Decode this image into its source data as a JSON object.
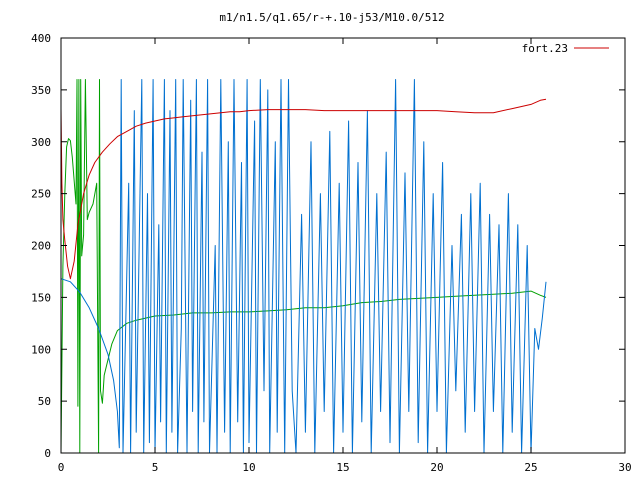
{
  "chart_data": {
    "type": "line",
    "title": "m1/n1.5/q1.65/r-+.10-j53/M10.0/512",
    "xlabel": "",
    "ylabel": "",
    "xlim": [
      0,
      30
    ],
    "ylim": [
      0,
      400
    ],
    "xticks": [
      0,
      5,
      10,
      15,
      20,
      25,
      30
    ],
    "yticks": [
      0,
      50,
      100,
      150,
      200,
      250,
      300,
      350,
      400
    ],
    "grid": false,
    "legend_position": "top-right",
    "series": [
      {
        "name": "fort.23",
        "color": "#cc0000",
        "points": [
          [
            0,
            332
          ],
          [
            0.05,
            260
          ],
          [
            0.1,
            225
          ],
          [
            0.2,
            205
          ],
          [
            0.35,
            180
          ],
          [
            0.5,
            168
          ],
          [
            0.7,
            185
          ],
          [
            0.9,
            220
          ],
          [
            1.2,
            250
          ],
          [
            1.5,
            268
          ],
          [
            1.8,
            280
          ],
          [
            2.2,
            290
          ],
          [
            2.6,
            298
          ],
          [
            3.0,
            305
          ],
          [
            3.5,
            310
          ],
          [
            4.0,
            315
          ],
          [
            4.5,
            318
          ],
          [
            5.0,
            320
          ],
          [
            5.5,
            322
          ],
          [
            6.0,
            323
          ],
          [
            6.5,
            324
          ],
          [
            7.0,
            325
          ],
          [
            7.5,
            326
          ],
          [
            8.0,
            327
          ],
          [
            8.5,
            328
          ],
          [
            9.0,
            329
          ],
          [
            9.5,
            329
          ],
          [
            10.0,
            330
          ],
          [
            11.0,
            331
          ],
          [
            12.0,
            331
          ],
          [
            13.0,
            331
          ],
          [
            14.0,
            330
          ],
          [
            15.0,
            330
          ],
          [
            16.0,
            330
          ],
          [
            17.0,
            330
          ],
          [
            18.0,
            330
          ],
          [
            19.0,
            330
          ],
          [
            20.0,
            330
          ],
          [
            21.0,
            329
          ],
          [
            22.0,
            328
          ],
          [
            23.0,
            328
          ],
          [
            24.0,
            332
          ],
          [
            25.0,
            336
          ],
          [
            25.5,
            340
          ],
          [
            25.8,
            341
          ]
        ]
      },
      {
        "name": "",
        "color": "#00a000",
        "points": [
          [
            0,
            0
          ],
          [
            0.1,
            180
          ],
          [
            0.2,
            250
          ],
          [
            0.3,
            295
          ],
          [
            0.4,
            303
          ],
          [
            0.5,
            301
          ],
          [
            0.6,
            285
          ],
          [
            0.7,
            262
          ],
          [
            0.8,
            240
          ],
          [
            0.85,
            360
          ],
          [
            0.9,
            45
          ],
          [
            0.95,
            360
          ],
          [
            1.0,
            0
          ],
          [
            1.05,
            360
          ],
          [
            1.1,
            190
          ],
          [
            1.2,
            210
          ],
          [
            1.3,
            360
          ],
          [
            1.4,
            225
          ],
          [
            1.5,
            232
          ],
          [
            1.7,
            240
          ],
          [
            1.9,
            260
          ],
          [
            2.0,
            0
          ],
          [
            2.05,
            360
          ],
          [
            2.1,
            60
          ],
          [
            2.2,
            48
          ],
          [
            2.3,
            75
          ],
          [
            2.5,
            90
          ],
          [
            2.7,
            105
          ],
          [
            3.0,
            118
          ],
          [
            3.5,
            125
          ],
          [
            4.0,
            128
          ],
          [
            4.5,
            130
          ],
          [
            5.0,
            132
          ],
          [
            6.0,
            133
          ],
          [
            7.0,
            135
          ],
          [
            8.0,
            135
          ],
          [
            9.0,
            136
          ],
          [
            10.0,
            136
          ],
          [
            11.0,
            137
          ],
          [
            12.0,
            138
          ],
          [
            13.0,
            140
          ],
          [
            14.0,
            140
          ],
          [
            15.0,
            142
          ],
          [
            16.0,
            145
          ],
          [
            17.0,
            146
          ],
          [
            18.0,
            148
          ],
          [
            19.0,
            149
          ],
          [
            20.0,
            150
          ],
          [
            21.0,
            151
          ],
          [
            22.0,
            152
          ],
          [
            23.0,
            153
          ],
          [
            24.0,
            154
          ],
          [
            25.0,
            156
          ],
          [
            25.5,
            152
          ],
          [
            25.8,
            150
          ]
        ]
      },
      {
        "name": "",
        "color": "#0070d0",
        "points": [
          [
            0,
            168
          ],
          [
            0.5,
            165
          ],
          [
            1.0,
            155
          ],
          [
            1.5,
            140
          ],
          [
            2.0,
            120
          ],
          [
            2.5,
            95
          ],
          [
            2.8,
            70
          ],
          [
            3.0,
            40
          ],
          [
            3.1,
            5
          ],
          [
            3.2,
            360
          ],
          [
            3.3,
            0
          ],
          [
            3.6,
            260
          ],
          [
            3.7,
            0
          ],
          [
            3.9,
            330
          ],
          [
            4.0,
            20
          ],
          [
            4.3,
            360
          ],
          [
            4.4,
            0
          ],
          [
            4.6,
            250
          ],
          [
            4.7,
            10
          ],
          [
            4.9,
            360
          ],
          [
            5.0,
            0
          ],
          [
            5.2,
            220
          ],
          [
            5.3,
            30
          ],
          [
            5.5,
            360
          ],
          [
            5.6,
            0
          ],
          [
            5.8,
            330
          ],
          [
            5.9,
            20
          ],
          [
            6.1,
            360
          ],
          [
            6.2,
            0
          ],
          [
            6.4,
            120
          ],
          [
            6.5,
            360
          ],
          [
            6.7,
            0
          ],
          [
            6.9,
            340
          ],
          [
            7.0,
            40
          ],
          [
            7.2,
            360
          ],
          [
            7.3,
            0
          ],
          [
            7.5,
            290
          ],
          [
            7.6,
            30
          ],
          [
            7.8,
            360
          ],
          [
            7.9,
            0
          ],
          [
            8.2,
            200
          ],
          [
            8.3,
            0
          ],
          [
            8.5,
            360
          ],
          [
            8.7,
            20
          ],
          [
            8.9,
            300
          ],
          [
            9.0,
            0
          ],
          [
            9.2,
            360
          ],
          [
            9.4,
            30
          ],
          [
            9.6,
            280
          ],
          [
            9.7,
            0
          ],
          [
            9.9,
            360
          ],
          [
            10.0,
            10
          ],
          [
            10.3,
            320
          ],
          [
            10.4,
            0
          ],
          [
            10.6,
            360
          ],
          [
            10.8,
            60
          ],
          [
            11.0,
            350
          ],
          [
            11.1,
            0
          ],
          [
            11.4,
            300
          ],
          [
            11.5,
            20
          ],
          [
            11.7,
            360
          ],
          [
            11.9,
            0
          ],
          [
            12.1,
            360
          ],
          [
            12.3,
            60
          ],
          [
            12.5,
            0
          ],
          [
            12.8,
            230
          ],
          [
            13.0,
            20
          ],
          [
            13.3,
            300
          ],
          [
            13.5,
            0
          ],
          [
            13.8,
            250
          ],
          [
            14.0,
            40
          ],
          [
            14.3,
            310
          ],
          [
            14.5,
            0
          ],
          [
            14.8,
            260
          ],
          [
            15.0,
            20
          ],
          [
            15.3,
            320
          ],
          [
            15.5,
            0
          ],
          [
            15.8,
            280
          ],
          [
            16.0,
            30
          ],
          [
            16.3,
            330
          ],
          [
            16.5,
            0
          ],
          [
            16.8,
            250
          ],
          [
            17.0,
            40
          ],
          [
            17.3,
            290
          ],
          [
            17.5,
            10
          ],
          [
            17.8,
            360
          ],
          [
            18.0,
            0
          ],
          [
            18.3,
            270
          ],
          [
            18.5,
            40
          ],
          [
            18.8,
            360
          ],
          [
            19.0,
            10
          ],
          [
            19.3,
            300
          ],
          [
            19.5,
            0
          ],
          [
            19.8,
            250
          ],
          [
            20.0,
            40
          ],
          [
            20.3,
            280
          ],
          [
            20.5,
            0
          ],
          [
            20.8,
            200
          ],
          [
            21.0,
            60
          ],
          [
            21.3,
            230
          ],
          [
            21.5,
            20
          ],
          [
            21.8,
            250
          ],
          [
            22.0,
            40
          ],
          [
            22.3,
            260
          ],
          [
            22.5,
            0
          ],
          [
            22.8,
            230
          ],
          [
            23.0,
            40
          ],
          [
            23.3,
            220
          ],
          [
            23.5,
            0
          ],
          [
            23.8,
            250
          ],
          [
            24.0,
            20
          ],
          [
            24.3,
            220
          ],
          [
            24.5,
            0
          ],
          [
            24.8,
            200
          ],
          [
            25.0,
            0
          ],
          [
            25.2,
            120
          ],
          [
            25.4,
            100
          ],
          [
            25.6,
            130
          ],
          [
            25.8,
            165
          ]
        ]
      }
    ]
  }
}
